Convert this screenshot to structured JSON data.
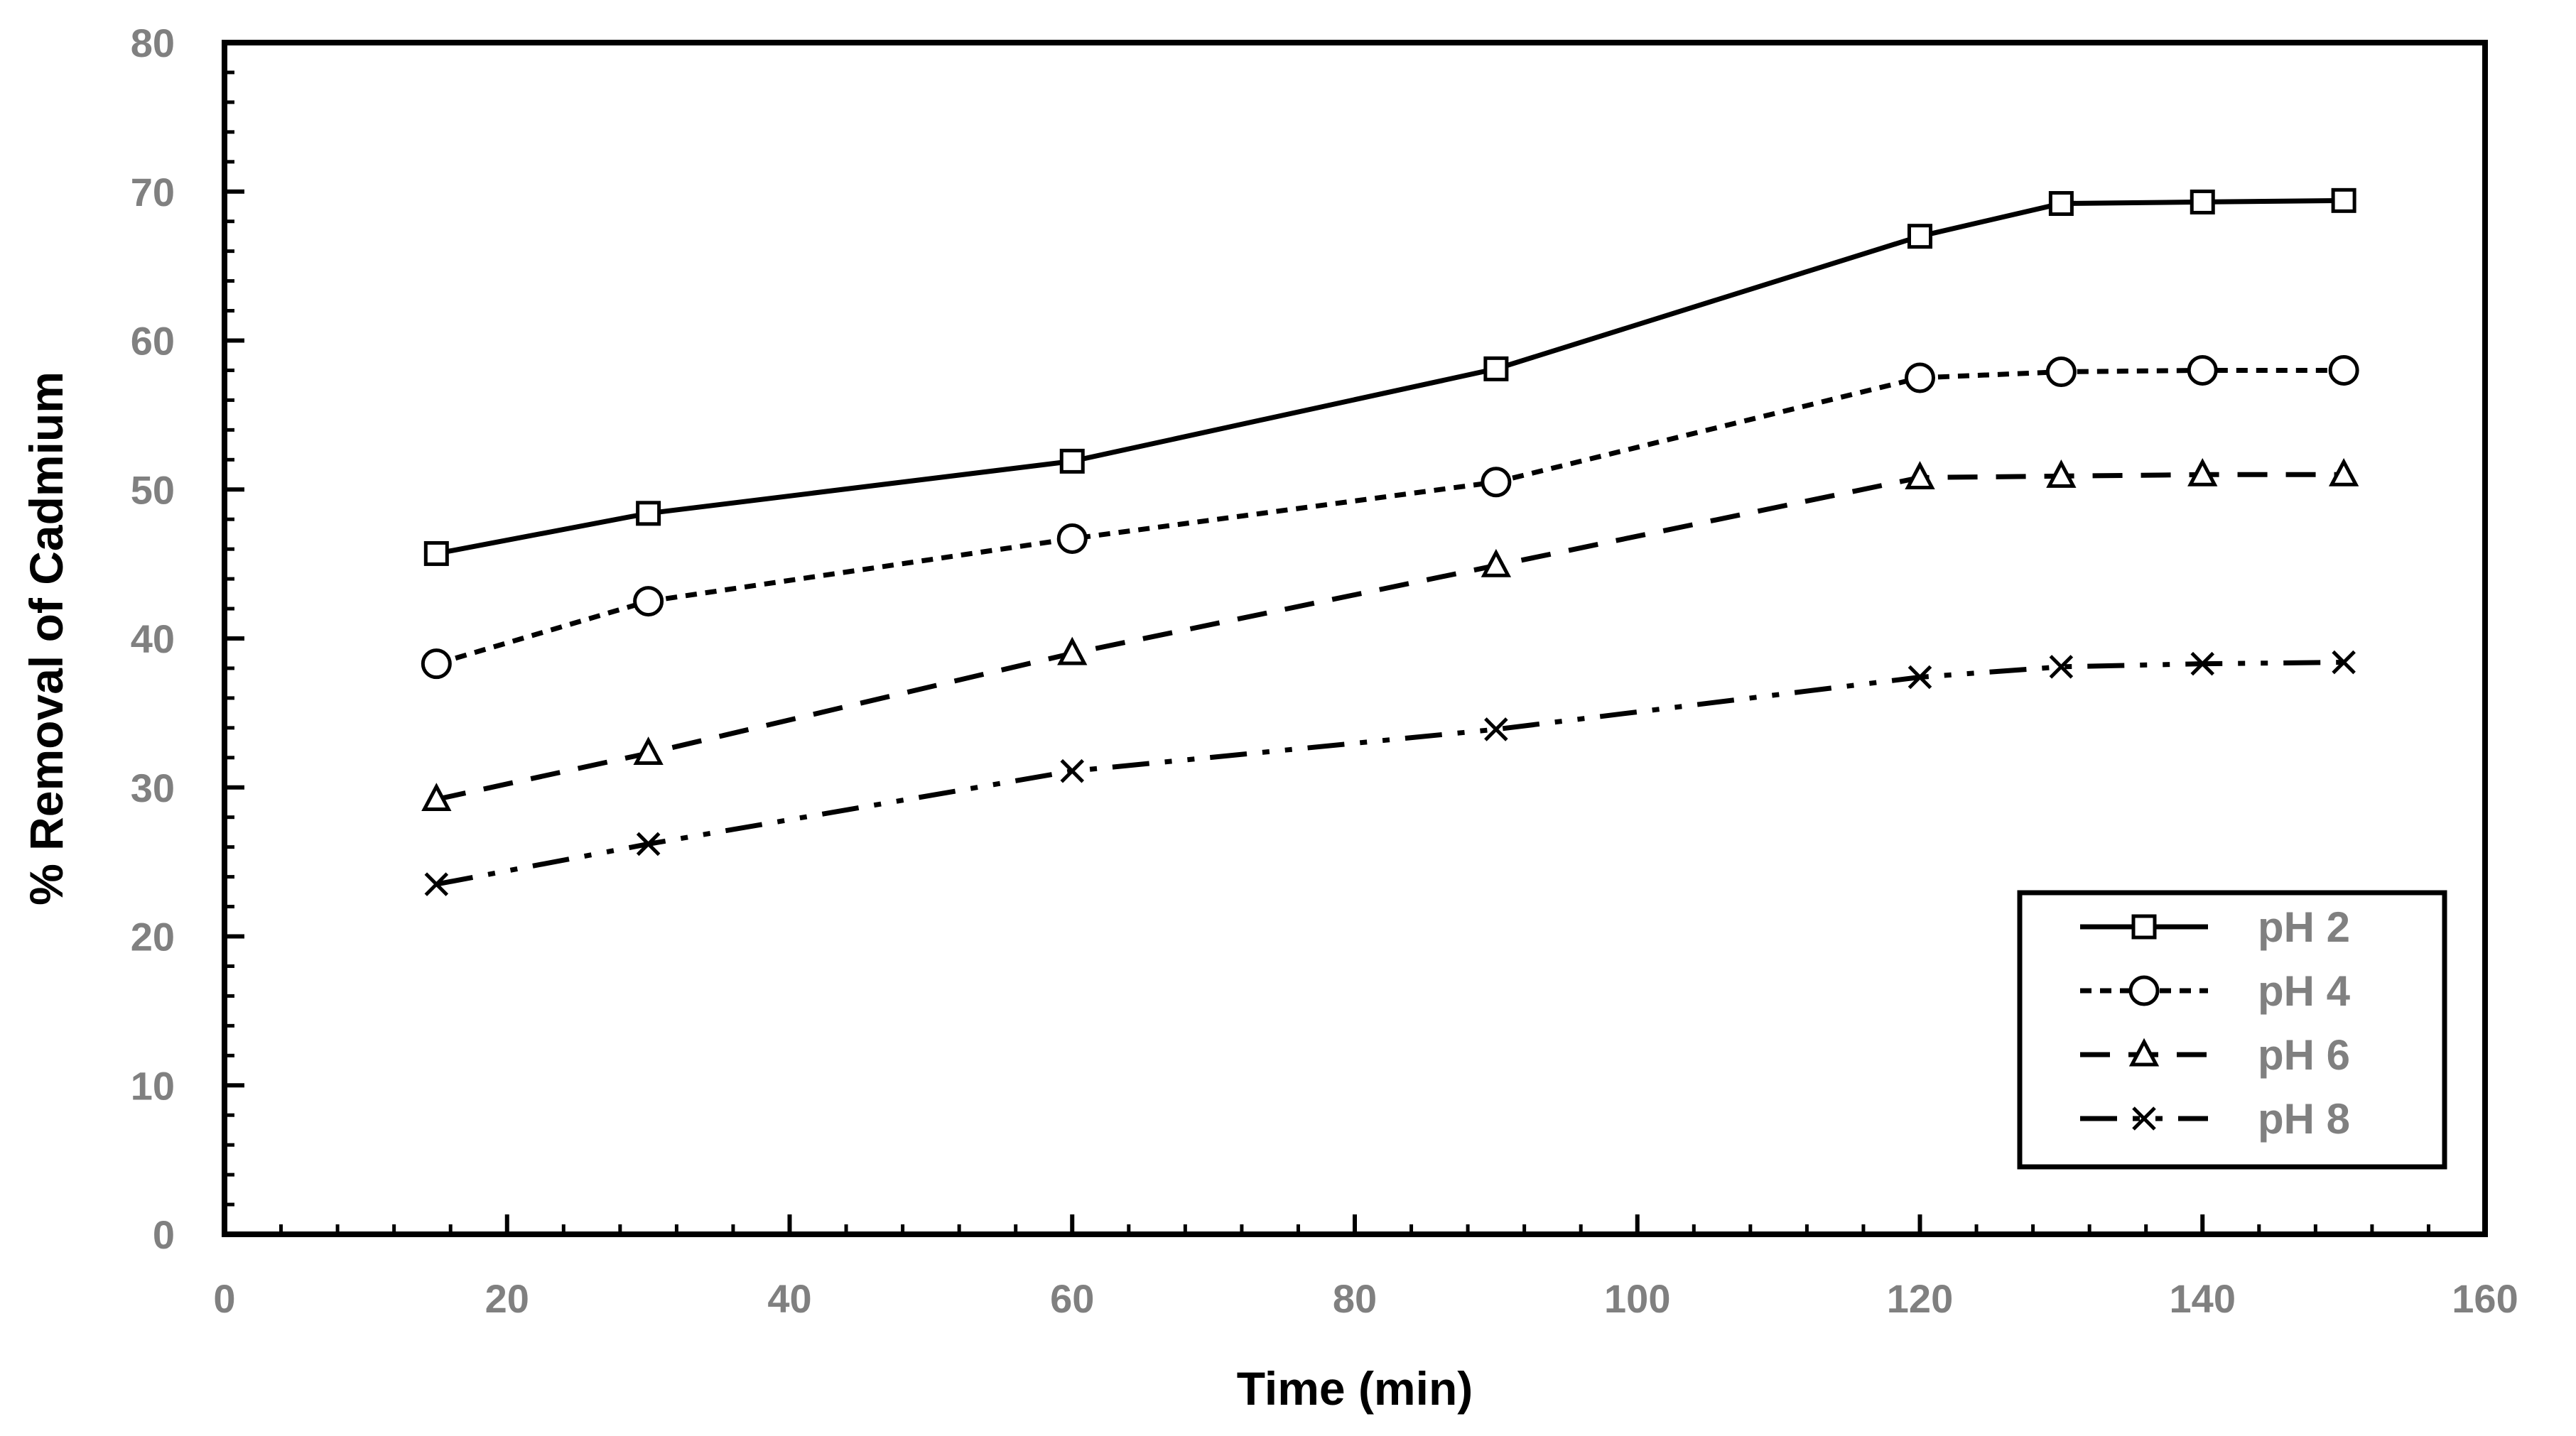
{
  "chart_data": {
    "type": "line",
    "xlabel": "Time (min)",
    "ylabel": "% Removal of Cadmium",
    "xlim": [
      0,
      160
    ],
    "ylim": [
      0,
      80
    ],
    "xticks": [
      0,
      20,
      40,
      60,
      80,
      100,
      120,
      140,
      160
    ],
    "yticks": [
      0,
      10,
      20,
      30,
      40,
      50,
      60,
      70,
      80
    ],
    "x": [
      15,
      30,
      60,
      90,
      120,
      130,
      140,
      150
    ],
    "series": [
      {
        "name": "pH 2",
        "marker": "square",
        "dash": "solid",
        "values": [
          45.7,
          48.4,
          51.9,
          58.1,
          67.0,
          69.2,
          69.3,
          69.4
        ]
      },
      {
        "name": "pH 4",
        "marker": "circle",
        "dash": "dotted",
        "values": [
          38.3,
          42.5,
          46.7,
          50.5,
          57.5,
          57.9,
          58.0,
          58.0
        ]
      },
      {
        "name": "pH 6",
        "marker": "triangle",
        "dash": "dashed",
        "values": [
          29.2,
          32.3,
          39.0,
          44.9,
          50.8,
          50.9,
          51.0,
          51.0
        ]
      },
      {
        "name": "pH 8",
        "marker": "x",
        "dash": "dashdotdot",
        "values": [
          23.5,
          26.2,
          31.1,
          33.9,
          37.4,
          38.1,
          38.3,
          38.4
        ]
      }
    ],
    "legend_position": "bottom-right"
  },
  "colors": {
    "axis": "#000000",
    "tick_label": "#808080",
    "line": "#000000"
  }
}
